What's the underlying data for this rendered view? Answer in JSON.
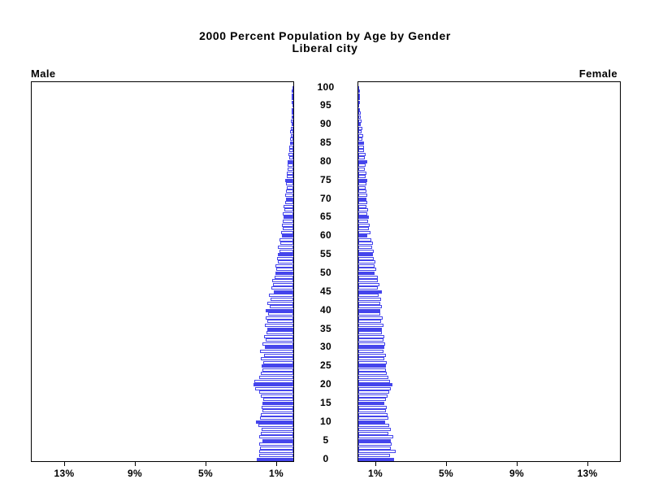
{
  "title": {
    "line1": "2000 Percent Population by Age by Gender",
    "line2": "Liberal city"
  },
  "panel_labels": {
    "male": "Male",
    "female": "Female"
  },
  "axes": {
    "pct_ticks_male": [
      "13%",
      "9%",
      "5%",
      "1%"
    ],
    "pct_ticks_female": [
      "1%",
      "5%",
      "9%",
      "13%"
    ],
    "pct_tick_values_male": [
      13,
      9,
      5,
      1
    ],
    "pct_tick_values_female": [
      1,
      5,
      9,
      13
    ],
    "age_tick_values": [
      0,
      5,
      10,
      15,
      20,
      25,
      30,
      35,
      40,
      45,
      50,
      55,
      60,
      65,
      70,
      75,
      80,
      85,
      90,
      95,
      100
    ]
  },
  "colors": {
    "bar_blue": "#4545EC",
    "bar_fill": "#FFFFFF",
    "axis_black": "#000000",
    "background": "#FFFFFF"
  },
  "chart_data": {
    "type": "bar",
    "subtype": "population-pyramid",
    "title": "2000 Percent Population by Age by Gender",
    "subtitle": "Liberal city",
    "left_panel_label": "Male",
    "right_panel_label": "Female",
    "x_unit": "percent of population",
    "x_ticks_labeled": [
      1,
      5,
      9,
      13
    ],
    "xlim_per_side": [
      0,
      14.8
    ],
    "age_min": 0,
    "age_max": 100,
    "age_step": 1,
    "highlighted_age_multiple": 5,
    "grid": false,
    "legend": "none",
    "series": [
      {
        "name": "Male",
        "values": [
          2.06,
          1.91,
          1.94,
          1.88,
          1.91,
          1.73,
          1.94,
          1.83,
          1.79,
          1.99,
          2.1,
          1.88,
          1.83,
          1.76,
          1.79,
          1.76,
          1.68,
          1.83,
          1.91,
          2.14,
          2.25,
          2.19,
          1.91,
          1.83,
          1.76,
          1.79,
          1.72,
          1.85,
          1.66,
          1.9,
          1.6,
          1.75,
          1.58,
          1.65,
          1.52,
          1.45,
          1.6,
          1.48,
          1.55,
          1.42,
          1.55,
          1.35,
          1.46,
          1.3,
          1.38,
          1.09,
          1.25,
          1.15,
          1.2,
          1.05,
          1.0,
          0.95,
          1.02,
          0.88,
          0.92,
          0.86,
          0.8,
          0.85,
          0.75,
          0.78,
          0.63,
          0.7,
          0.6,
          0.65,
          0.58,
          0.55,
          0.6,
          0.5,
          0.55,
          0.45,
          0.4,
          0.48,
          0.42,
          0.38,
          0.42,
          0.45,
          0.35,
          0.38,
          0.3,
          0.33,
          0.3,
          0.25,
          0.28,
          0.22,
          0.25,
          0.18,
          0.2,
          0.15,
          0.17,
          0.12,
          0.1,
          0.12,
          0.08,
          0.09,
          0.06,
          0.04,
          0.05,
          0.03,
          0.03,
          0.02,
          0.02
        ]
      },
      {
        "name": "Female",
        "values": [
          2.0,
          1.77,
          2.12,
          1.85,
          1.9,
          1.82,
          1.95,
          1.7,
          1.85,
          1.75,
          1.5,
          1.72,
          1.65,
          1.58,
          1.62,
          1.47,
          1.55,
          1.65,
          1.75,
          1.85,
          1.93,
          1.8,
          1.7,
          1.62,
          1.55,
          1.55,
          1.6,
          1.48,
          1.55,
          1.42,
          1.47,
          1.52,
          1.4,
          1.45,
          1.35,
          1.32,
          1.42,
          1.3,
          1.38,
          1.25,
          1.24,
          1.35,
          1.22,
          1.28,
          1.15,
          1.32,
          1.12,
          1.18,
          1.08,
          1.12,
          0.93,
          1.0,
          0.9,
          0.95,
          0.85,
          0.81,
          0.88,
          0.78,
          0.82,
          0.72,
          0.5,
          0.68,
          0.58,
          0.62,
          0.55,
          0.6,
          0.52,
          0.56,
          0.48,
          0.52,
          0.44,
          0.5,
          0.45,
          0.4,
          0.45,
          0.5,
          0.42,
          0.45,
          0.38,
          0.42,
          0.5,
          0.35,
          0.4,
          0.3,
          0.33,
          0.3,
          0.25,
          0.28,
          0.2,
          0.22,
          0.15,
          0.17,
          0.12,
          0.13,
          0.1,
          0.05,
          0.07,
          0.05,
          0.04,
          0.03,
          0.02
        ]
      }
    ]
  }
}
